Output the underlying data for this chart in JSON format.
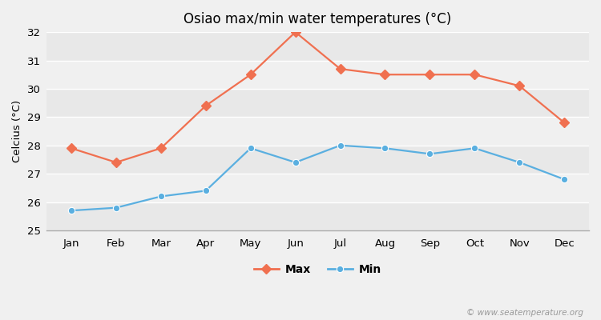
{
  "months": [
    "Jan",
    "Feb",
    "Mar",
    "Apr",
    "May",
    "Jun",
    "Jul",
    "Aug",
    "Sep",
    "Oct",
    "Nov",
    "Dec"
  ],
  "max_temps": [
    27.9,
    27.4,
    27.9,
    29.4,
    30.5,
    32.0,
    30.7,
    30.5,
    30.5,
    30.5,
    30.1,
    28.8
  ],
  "min_temps": [
    25.7,
    25.8,
    26.2,
    26.4,
    27.9,
    27.4,
    28.0,
    27.9,
    27.7,
    27.9,
    27.4,
    26.8
  ],
  "max_color": "#f07050",
  "min_color": "#5aafe0",
  "title": "Osiao max/min water temperatures (°C)",
  "ylabel": "Celcius (°C)",
  "ylim": [
    25,
    32
  ],
  "yticks": [
    25,
    26,
    27,
    28,
    29,
    30,
    31,
    32
  ],
  "band_colors": [
    "#e8e8e8",
    "#f0f0f0"
  ],
  "bg_color": "#f0f0f0",
  "grid_color": "#ffffff",
  "watermark": "© www.seatemperature.org",
  "legend_max": "Max",
  "legend_min": "Min"
}
